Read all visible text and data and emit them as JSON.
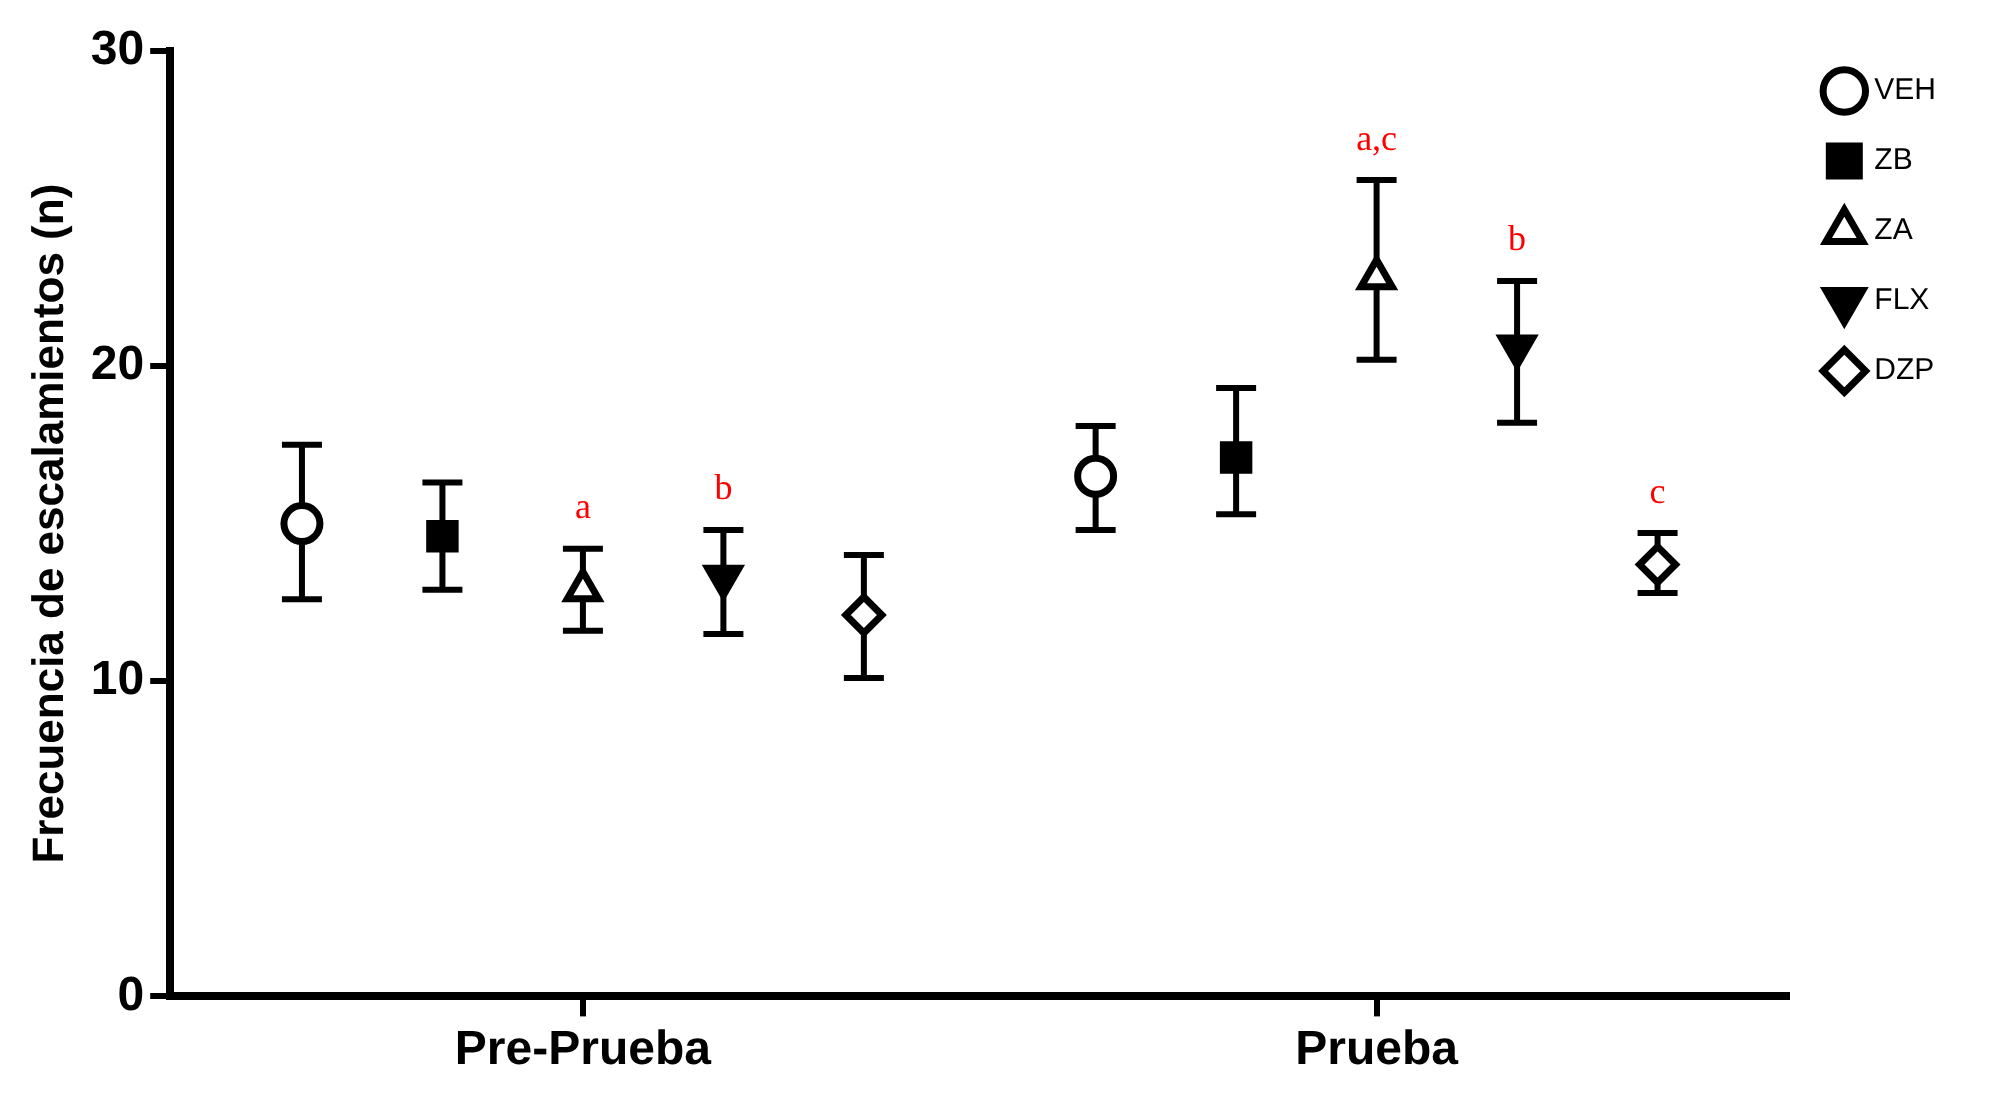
{
  "chart_data": {
    "type": "scatter",
    "ylabel": "Frecuencia de escalamientos (n)",
    "categories": [
      "Pre-Prueba",
      "Prueba"
    ],
    "ylim": [
      0,
      30
    ],
    "yticks": [
      0,
      10,
      20,
      30
    ],
    "grid": false,
    "legend": "top right",
    "series": [
      {
        "name": "VEH",
        "color": "#000000",
        "marker": "circle",
        "values": [
          15.0,
          16.5
        ],
        "errors": [
          [
            12.6,
            17.5
          ],
          [
            14.8,
            18.1
          ]
        ]
      },
      {
        "name": "ZB",
        "color": "#000000",
        "marker": "square",
        "values": [
          14.6,
          17.1
        ],
        "errors": [
          [
            12.9,
            16.3
          ],
          [
            15.3,
            19.3
          ]
        ]
      },
      {
        "name": "ZA",
        "color": "#000000",
        "marker": "triangle",
        "values": [
          12.9,
          22.8
        ],
        "errors": [
          [
            11.6,
            14.2
          ],
          [
            20.2,
            25.9
          ]
        ],
        "value_labels": [
          "a",
          "a,c"
        ]
      },
      {
        "name": "FLX",
        "color": "#000000",
        "marker": "triangle-down",
        "values": [
          13.3,
          20.6
        ],
        "errors": [
          [
            11.5,
            14.8
          ],
          [
            18.2,
            22.7
          ]
        ],
        "value_labels": [
          "b",
          "b"
        ]
      },
      {
        "name": "DZP",
        "color": "#000000",
        "marker": "diamond",
        "values": [
          12.1,
          13.7
        ],
        "errors": [
          [
            10.1,
            14.0
          ],
          [
            12.8,
            14.7
          ]
        ],
        "value_labels": [
          null,
          "c"
        ]
      }
    ]
  }
}
